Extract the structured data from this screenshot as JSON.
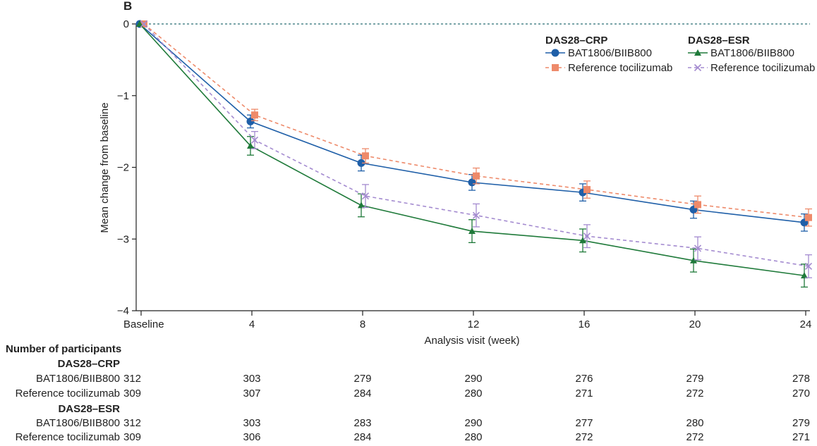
{
  "panel_label": "B",
  "colors": {
    "crp_bat": "#1f5fa8",
    "crp_ref": "#ee8a6a",
    "esr_bat": "#1f7a3a",
    "esr_ref": "#a48bd0",
    "zero_line": "#2b6f76"
  },
  "chart_data": {
    "type": "line",
    "xlabel": "Analysis visit (week)",
    "ylabel": "Mean change from baseline",
    "categories": [
      "Baseline",
      "4",
      "8",
      "12",
      "16",
      "20",
      "24"
    ],
    "ylim": [
      -4,
      0
    ],
    "yticks": [
      "0",
      "−1",
      "−2",
      "−3",
      "−4"
    ],
    "ytick_values": [
      0,
      -1,
      -2,
      -3,
      -4
    ],
    "legend": {
      "group1": "DAS28–CRP",
      "group2": "DAS28–ESR",
      "placement": "top-right"
    },
    "series": [
      {
        "id": "crp_bat",
        "name": "BAT1806/BIIB800",
        "group": "DAS28–CRP",
        "marker": "circle",
        "dashed": false,
        "values": [
          0,
          -1.36,
          -1.94,
          -2.21,
          -2.35,
          -2.59,
          -2.77
        ],
        "err": [
          0,
          0.09,
          0.11,
          0.11,
          0.12,
          0.12,
          0.12
        ]
      },
      {
        "id": "crp_ref",
        "name": "Reference tocilizumab",
        "group": "DAS28–CRP",
        "marker": "square",
        "dashed": true,
        "values": [
          0,
          -1.27,
          -1.84,
          -2.12,
          -2.31,
          -2.52,
          -2.7
        ],
        "err": [
          0,
          0.08,
          0.1,
          0.11,
          0.12,
          0.12,
          0.12
        ]
      },
      {
        "id": "esr_bat",
        "name": "BAT1806/BIIB800",
        "group": "DAS28–ESR",
        "marker": "triangle",
        "dashed": false,
        "values": [
          0,
          -1.7,
          -2.53,
          -2.89,
          -3.02,
          -3.3,
          -3.51
        ],
        "err": [
          0,
          0.13,
          0.16,
          0.16,
          0.16,
          0.16,
          0.16
        ]
      },
      {
        "id": "esr_ref",
        "name": "Reference tocilizumab",
        "group": "DAS28–ESR",
        "marker": "x",
        "dashed": true,
        "values": [
          0,
          -1.62,
          -2.4,
          -2.67,
          -2.96,
          -3.13,
          -3.38
        ],
        "err": [
          0,
          0.12,
          0.16,
          0.16,
          0.16,
          0.16,
          0.16
        ]
      }
    ]
  },
  "table": {
    "title": "Number of participants",
    "groups": [
      {
        "name": "DAS28–CRP",
        "rows": [
          {
            "label": "BAT1806/BIIB800",
            "values": [
              "312",
              "303",
              "279",
              "290",
              "276",
              "279",
              "278"
            ]
          },
          {
            "label": "Reference tocilizumab",
            "values": [
              "309",
              "307",
              "284",
              "280",
              "271",
              "272",
              "270"
            ]
          }
        ]
      },
      {
        "name": "DAS28–ESR",
        "rows": [
          {
            "label": "BAT1806/BIIB800",
            "values": [
              "312",
              "303",
              "283",
              "290",
              "277",
              "280",
              "279"
            ]
          },
          {
            "label": "Reference tocilizumab",
            "values": [
              "309",
              "306",
              "284",
              "280",
              "272",
              "272",
              "271"
            ]
          }
        ]
      }
    ]
  }
}
